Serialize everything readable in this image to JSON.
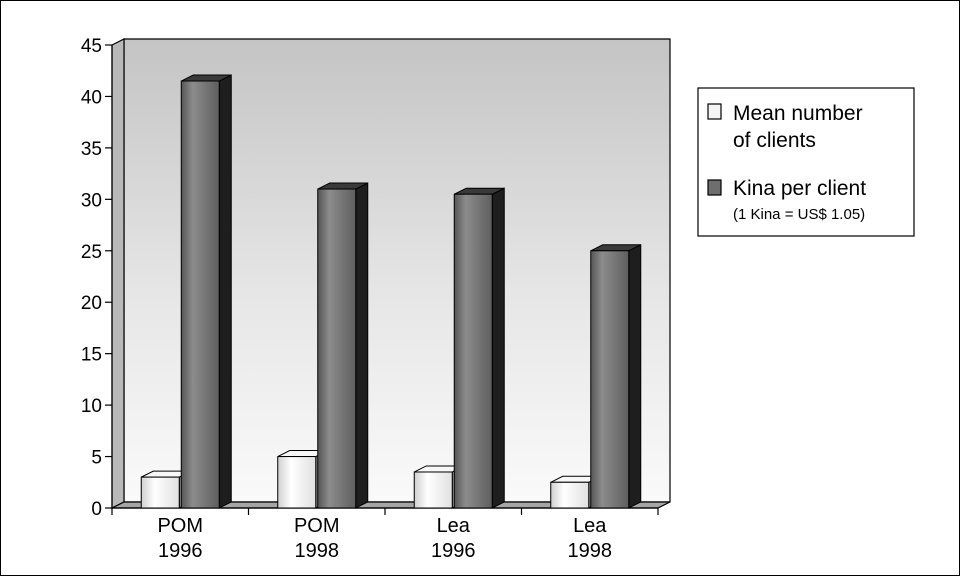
{
  "chart_data": {
    "type": "bar",
    "categories": [
      {
        "line1": "POM",
        "line2": "1996"
      },
      {
        "line1": "POM",
        "line2": "1998"
      },
      {
        "line1": "Lea",
        "line2": "1996"
      },
      {
        "line1": "Lea",
        "line2": "1998"
      }
    ],
    "series": [
      {
        "name": "Mean number of clients",
        "name_lines": [
          "Mean number",
          "of clients"
        ],
        "color": "#f2f2f2",
        "values": [
          3,
          5,
          3.5,
          2.5
        ]
      },
      {
        "name": "Kina per client",
        "name_lines": [
          "Kina per client"
        ],
        "note": "(1 Kina = US$ 1.05)",
        "color": "#6e6e6e",
        "values": [
          41.5,
          31,
          30.5,
          25
        ]
      }
    ],
    "yticks": [
      "0",
      "5",
      "10",
      "15",
      "20",
      "25",
      "30",
      "35",
      "40",
      "45"
    ],
    "ylim": [
      0,
      45
    ],
    "title": "",
    "xlabel": "",
    "ylabel": "",
    "legend_position": "right",
    "grid": false,
    "chart_style": "3d-bar"
  }
}
